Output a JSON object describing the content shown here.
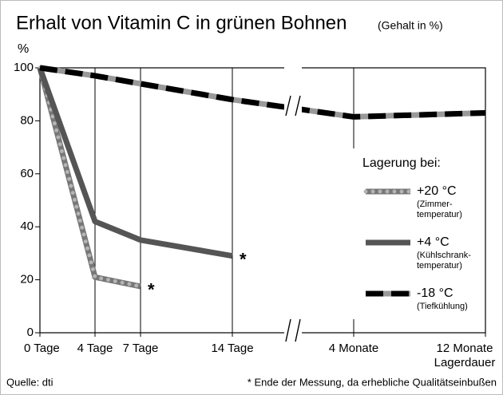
{
  "chart_data": {
    "type": "line",
    "title": "Erhalt von Vitamin C in grünen Bohnen",
    "subtitle": "(Gehalt in %)",
    "y_label": "%",
    "x_label": "Lagerdauer",
    "categories": [
      "0 Tage",
      "4 Tage",
      "7 Tage",
      "14 Tage",
      "4 Monate",
      "12 Monate"
    ],
    "ylim": [
      0,
      100
    ],
    "yticks": [
      0,
      20,
      40,
      60,
      80,
      100
    ],
    "grid": true,
    "legend_title": "Lagerung bei:",
    "legend_position": "right",
    "series": [
      {
        "name": "+20 °C",
        "note": [
          "(Zimmer-",
          "temperatur)"
        ],
        "color": "#b4b4b4",
        "style": "dotted",
        "values": [
          100,
          21,
          17.5,
          null,
          null,
          null
        ],
        "end_label": "*"
      },
      {
        "name": "+4 °C",
        "note": [
          "(Kühlschrank-",
          "temperatur)"
        ],
        "color": "#555555",
        "style": "solid",
        "values": [
          100,
          42,
          35,
          29,
          null,
          null
        ],
        "end_label": "*"
      },
      {
        "name": "-18 °C",
        "note": [
          "(Tiefkühlung)"
        ],
        "color": "#000000",
        "style": "dashed",
        "values": [
          100,
          97,
          94,
          88,
          81.5,
          83
        ]
      }
    ],
    "source": "Quelle: dti",
    "footnote": "* Ende der Messung, da erhebliche Qualitätseinbußen"
  }
}
